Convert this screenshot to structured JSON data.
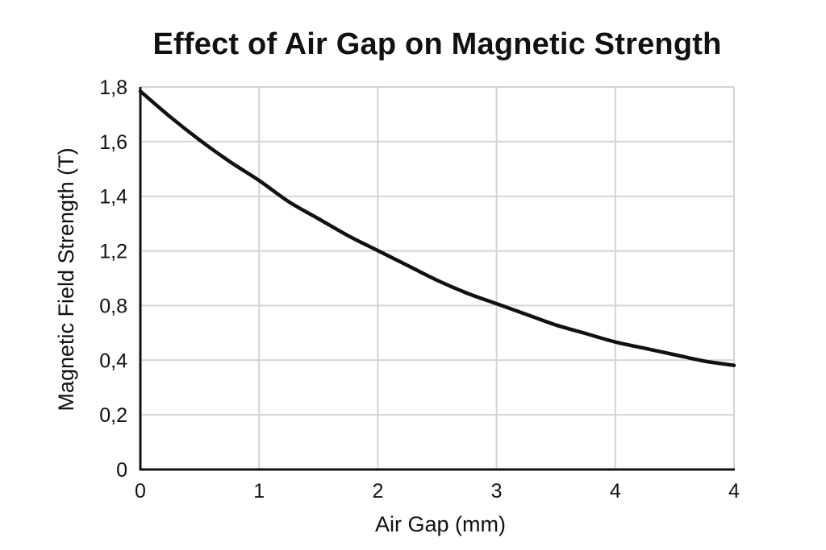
{
  "chart_data": {
    "type": "line",
    "title": "Effect of Air Gap on Magnetic Strength",
    "xlabel": "Air Gap (mm)",
    "ylabel": "Magnetic Field Strength (T)",
    "x_tick_labels": [
      "0",
      "1",
      "2",
      "3",
      "4",
      "4"
    ],
    "y_tick_labels": [
      "0",
      "0,2",
      "0,4",
      "0,8",
      "1,2",
      "1,4",
      "1,6",
      "1,8"
    ],
    "grid": true,
    "legend": "none",
    "series": [
      {
        "color": "#111111",
        "points": [
          [
            0.0,
            1.78
          ],
          [
            0.25,
            1.66
          ],
          [
            0.5,
            1.55
          ],
          [
            0.75,
            1.45
          ],
          [
            1.0,
            1.36
          ],
          [
            1.25,
            1.26
          ],
          [
            1.5,
            1.18
          ],
          [
            1.75,
            1.1
          ],
          [
            2.0,
            1.03
          ],
          [
            2.25,
            0.96
          ],
          [
            2.5,
            0.89
          ],
          [
            2.75,
            0.83
          ],
          [
            3.0,
            0.78
          ],
          [
            3.25,
            0.73
          ],
          [
            3.5,
            0.68
          ],
          [
            3.75,
            0.64
          ],
          [
            4.0,
            0.6
          ],
          [
            4.25,
            0.57
          ],
          [
            4.5,
            0.54
          ],
          [
            4.75,
            0.51
          ],
          [
            5.0,
            0.49
          ]
        ]
      }
    ]
  }
}
